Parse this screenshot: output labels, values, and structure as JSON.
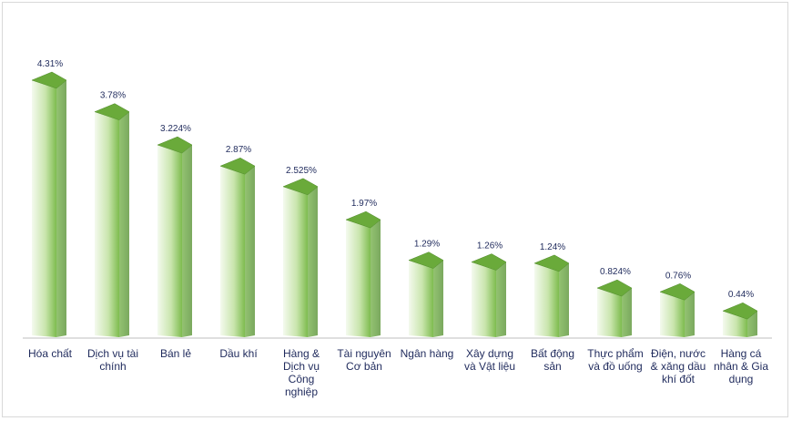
{
  "chart_data": {
    "type": "bar",
    "title": "",
    "xlabel": "",
    "ylabel": "",
    "ylim": [
      0,
      4.31
    ],
    "grid": false,
    "legend": "none",
    "categories": [
      [
        "Hóa chất"
      ],
      [
        "Dịch vụ tài",
        "chính"
      ],
      [
        "Bán lẻ"
      ],
      [
        "Dầu khí"
      ],
      [
        "Hàng &",
        "Dịch vụ",
        "Công",
        "nghiệp"
      ],
      [
        "Tài nguyên",
        "Cơ bản"
      ],
      [
        "Ngân hàng"
      ],
      [
        "Xây dựng",
        "và Vật liệu"
      ],
      [
        "Bất động",
        "sản"
      ],
      [
        "Thực phẩm",
        "và đồ uống"
      ],
      [
        "Điện, nước",
        "& xăng dầu",
        "khí đốt"
      ],
      [
        "Hàng cá",
        "nhân & Gia",
        "dụng"
      ]
    ],
    "values": [
      4.31,
      3.78,
      3.224,
      2.87,
      2.525,
      1.97,
      1.29,
      1.26,
      1.24,
      0.824,
      0.76,
      0.44
    ],
    "labels": [
      "4.31%",
      "3.78%",
      "3.224%",
      "2.87%",
      "2.525%",
      "1.97%",
      "1.29%",
      "1.26%",
      "1.24%",
      "0.824%",
      "0.76%",
      "0.44%"
    ],
    "colors": {
      "top": "#6aaa3a",
      "top_dark": "#4f8a2a",
      "front_light": "#f2f9ea",
      "front_dark": "#7fbf4e",
      "side": "#5e9e34",
      "axis": "#bfbfbf",
      "text": "#1f2a5c"
    }
  }
}
